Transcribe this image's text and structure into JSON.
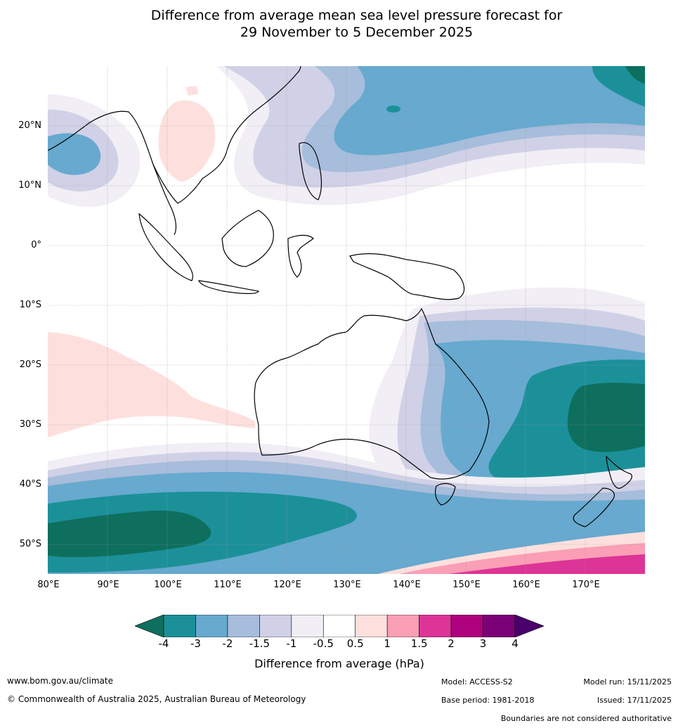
{
  "title": {
    "line1": "Difference from average mean sea level pressure forecast for",
    "line2": "29 November to 5 December 2025"
  },
  "axes": {
    "lat_labels": [
      "20°N",
      "10°N",
      "0°",
      "10°S",
      "20°S",
      "30°S",
      "40°S",
      "50°S"
    ],
    "lon_labels": [
      "80°E",
      "90°E",
      "100°E",
      "110°E",
      "120°E",
      "130°E",
      "140°E",
      "150°E",
      "160°E",
      "170°E"
    ]
  },
  "colorbar": {
    "label": "Difference from average (hPa)",
    "ticks": [
      "-4",
      "-3",
      "-2",
      "-1.5",
      "-1",
      "-0.5",
      "0.5",
      "1",
      "1.5",
      "2",
      "3",
      "4"
    ],
    "colors": [
      "#0e6f5e",
      "#1c9099",
      "#67a9cf",
      "#a6bddb",
      "#d0d1e6",
      "#f1eef6",
      "#ffffff",
      "#fde0dd",
      "#fa9fb5",
      "#dd3497",
      "#ae017e",
      "#7a0177",
      "#49006a"
    ]
  },
  "footer": {
    "website": "www.bom.gov.au/climate",
    "copyright": "© Commonwealth of Australia 2025, Australian Bureau of Meteorology",
    "model": "Model: ACCESS-S2",
    "base_period": "Base period: 1981-2018",
    "model_run": "Model run: 15/11/2025",
    "issued": "Issued: 17/11/2025",
    "disclaimer": "Boundaries are not considered authoritative"
  }
}
